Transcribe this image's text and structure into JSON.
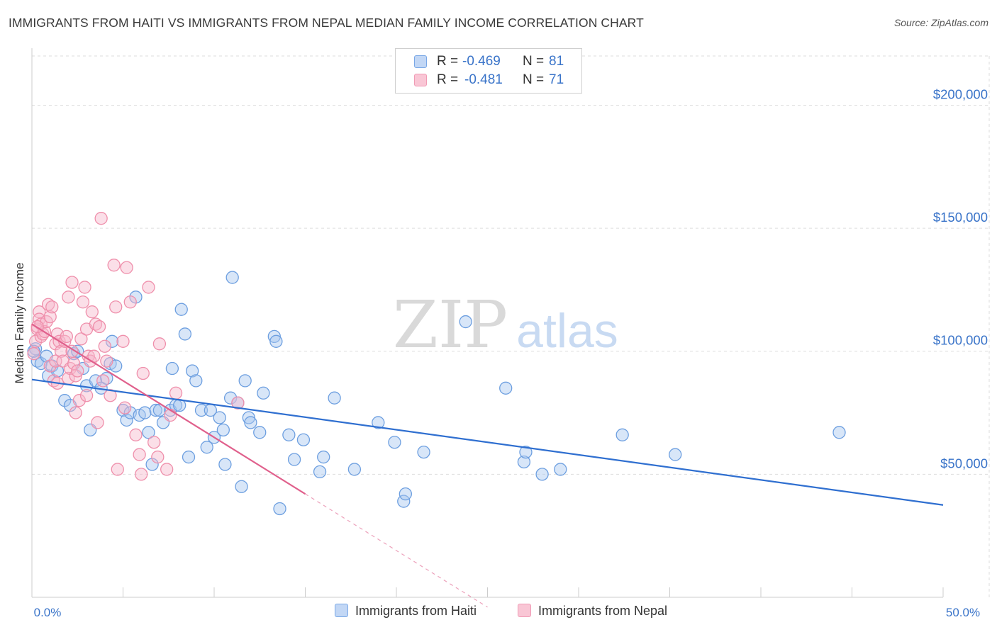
{
  "title": "IMMIGRANTS FROM HAITI VS IMMIGRANTS FROM NEPAL MEDIAN FAMILY INCOME CORRELATION CHART",
  "source": "Source: ZipAtlas.com",
  "watermark": {
    "zip": "ZIP",
    "atlas": "atlas"
  },
  "legend": {
    "r_label": "R =",
    "n_label": "N =",
    "haiti": {
      "r": "-0.469",
      "n": "81"
    },
    "nepal": {
      "r": "-0.481",
      "n": "71"
    }
  },
  "colors": {
    "haiti_fill": "#a9c8f0",
    "haiti_stroke": "#6d9fe0",
    "haiti_line": "#2f6fd0",
    "nepal_fill": "#f7b8cb",
    "nepal_stroke": "#ef8fab",
    "nepal_line": "#e0608c",
    "axis_label": "#3a74c9",
    "grid": "#dddddd"
  },
  "chart_data": {
    "type": "scatter",
    "title": "IMMIGRANTS FROM HAITI VS IMMIGRANTS FROM NEPAL MEDIAN FAMILY INCOME CORRELATION CHART",
    "xlabel": "",
    "ylabel": "Median Family Income",
    "xlim": [
      0,
      50
    ],
    "ylim": [
      0,
      220000
    ],
    "x_tick_labels": [
      "0.0%",
      "50.0%"
    ],
    "y_ticks": [
      50000,
      100000,
      150000,
      200000
    ],
    "y_tick_labels": [
      "$50,000",
      "$100,000",
      "$150,000",
      "$200,000"
    ],
    "grid": true,
    "legend_position": "top-center",
    "series": [
      {
        "name": "Immigrants from Haiti",
        "trend": {
          "x": [
            0,
            50
          ],
          "y": [
            88500,
            37500
          ]
        },
        "points": [
          [
            0.2,
            101000
          ],
          [
            0.3,
            96000
          ],
          [
            0.5,
            95000
          ],
          [
            0.8,
            98000
          ],
          [
            0.9,
            90000
          ],
          [
            1.1,
            94000
          ],
          [
            1.4,
            92000
          ],
          [
            1.8,
            80000
          ],
          [
            2.1,
            78000
          ],
          [
            2.3,
            99000
          ],
          [
            2.5,
            100000
          ],
          [
            2.8,
            93000
          ],
          [
            3.0,
            86000
          ],
          [
            3.2,
            68000
          ],
          [
            3.5,
            88000
          ],
          [
            3.8,
            85000
          ],
          [
            4.1,
            89000
          ],
          [
            4.3,
            95000
          ],
          [
            4.4,
            104000
          ],
          [
            4.6,
            94000
          ],
          [
            5.0,
            76000
          ],
          [
            5.2,
            72000
          ],
          [
            5.4,
            75000
          ],
          [
            5.7,
            122000
          ],
          [
            5.9,
            74000
          ],
          [
            6.2,
            75000
          ],
          [
            6.4,
            67000
          ],
          [
            6.6,
            54000
          ],
          [
            6.8,
            76000
          ],
          [
            7.0,
            76000
          ],
          [
            7.2,
            71000
          ],
          [
            7.6,
            76000
          ],
          [
            7.7,
            93000
          ],
          [
            7.9,
            78000
          ],
          [
            8.1,
            78000
          ],
          [
            8.2,
            117000
          ],
          [
            8.4,
            107000
          ],
          [
            8.6,
            57000
          ],
          [
            8.8,
            92000
          ],
          [
            9.0,
            88000
          ],
          [
            9.3,
            76000
          ],
          [
            9.6,
            61000
          ],
          [
            9.8,
            76000
          ],
          [
            10.0,
            65000
          ],
          [
            10.3,
            73000
          ],
          [
            10.5,
            68000
          ],
          [
            10.6,
            54000
          ],
          [
            10.9,
            81000
          ],
          [
            11.0,
            130000
          ],
          [
            11.3,
            79000
          ],
          [
            11.5,
            45000
          ],
          [
            11.7,
            88000
          ],
          [
            11.9,
            73000
          ],
          [
            12.0,
            71000
          ],
          [
            12.5,
            67000
          ],
          [
            12.7,
            83000
          ],
          [
            13.3,
            106000
          ],
          [
            13.4,
            104000
          ],
          [
            13.6,
            36000
          ],
          [
            14.1,
            66000
          ],
          [
            14.4,
            56000
          ],
          [
            14.9,
            64000
          ],
          [
            15.8,
            51000
          ],
          [
            16.0,
            57000
          ],
          [
            16.6,
            81000
          ],
          [
            17.7,
            52000
          ],
          [
            19.0,
            71000
          ],
          [
            19.9,
            63000
          ],
          [
            20.4,
            39000
          ],
          [
            20.5,
            42000
          ],
          [
            21.5,
            59000
          ],
          [
            23.8,
            112000
          ],
          [
            26.0,
            85000
          ],
          [
            27.0,
            55000
          ],
          [
            27.1,
            59000
          ],
          [
            28.0,
            50000
          ],
          [
            29.0,
            52000
          ],
          [
            32.4,
            66000
          ],
          [
            35.3,
            58000
          ],
          [
            44.3,
            67000
          ],
          [
            0.1,
            100000
          ]
        ]
      },
      {
        "name": "Immigrants from Nepal",
        "trend": {
          "x": [
            0,
            15
          ],
          "y": [
            111000,
            42000
          ]
        },
        "trend_dashed": {
          "x": [
            15,
            25
          ],
          "y": [
            42000,
            -4000
          ]
        },
        "points": [
          [
            0.1,
            99000
          ],
          [
            0.2,
            104000
          ],
          [
            0.3,
            109000
          ],
          [
            0.4,
            116000
          ],
          [
            0.4,
            113000
          ],
          [
            0.5,
            111000
          ],
          [
            0.5,
            106000
          ],
          [
            0.6,
            107000
          ],
          [
            0.7,
            108000
          ],
          [
            0.8,
            112000
          ],
          [
            0.9,
            119000
          ],
          [
            1.0,
            114000
          ],
          [
            1.0,
            94000
          ],
          [
            1.1,
            118000
          ],
          [
            1.2,
            88000
          ],
          [
            1.3,
            96000
          ],
          [
            1.3,
            103000
          ],
          [
            1.4,
            107000
          ],
          [
            1.4,
            87000
          ],
          [
            1.5,
            104000
          ],
          [
            1.6,
            100000
          ],
          [
            1.7,
            96000
          ],
          [
            1.8,
            104000
          ],
          [
            1.9,
            106000
          ],
          [
            2.0,
            122000
          ],
          [
            2.0,
            89000
          ],
          [
            2.1,
            93000
          ],
          [
            2.2,
            100000
          ],
          [
            2.2,
            128000
          ],
          [
            2.3,
            95000
          ],
          [
            2.4,
            90000
          ],
          [
            2.4,
            75000
          ],
          [
            2.5,
            92000
          ],
          [
            2.6,
            80000
          ],
          [
            2.7,
            105000
          ],
          [
            2.8,
            120000
          ],
          [
            2.9,
            126000
          ],
          [
            3.0,
            109000
          ],
          [
            3.0,
            82000
          ],
          [
            3.1,
            98000
          ],
          [
            3.2,
            96000
          ],
          [
            3.3,
            116000
          ],
          [
            3.4,
            98000
          ],
          [
            3.5,
            111000
          ],
          [
            3.6,
            71000
          ],
          [
            3.7,
            110000
          ],
          [
            3.8,
            154000
          ],
          [
            3.9,
            88000
          ],
          [
            4.0,
            102000
          ],
          [
            4.1,
            96000
          ],
          [
            4.3,
            82000
          ],
          [
            4.5,
            135000
          ],
          [
            4.6,
            118000
          ],
          [
            4.7,
            52000
          ],
          [
            5.0,
            104000
          ],
          [
            5.1,
            77000
          ],
          [
            5.2,
            134000
          ],
          [
            5.4,
            120000
          ],
          [
            5.7,
            66000
          ],
          [
            5.9,
            58000
          ],
          [
            6.0,
            50000
          ],
          [
            6.1,
            91000
          ],
          [
            6.4,
            126000
          ],
          [
            6.7,
            63000
          ],
          [
            6.9,
            57000
          ],
          [
            7.0,
            103000
          ],
          [
            7.4,
            52000
          ],
          [
            7.6,
            74000
          ],
          [
            7.9,
            83000
          ],
          [
            11.3,
            79000
          ],
          [
            0.3,
            110000
          ]
        ]
      }
    ]
  },
  "bottom_legend": {
    "haiti": "Immigrants from Haiti",
    "nepal": "Immigrants from Nepal"
  }
}
